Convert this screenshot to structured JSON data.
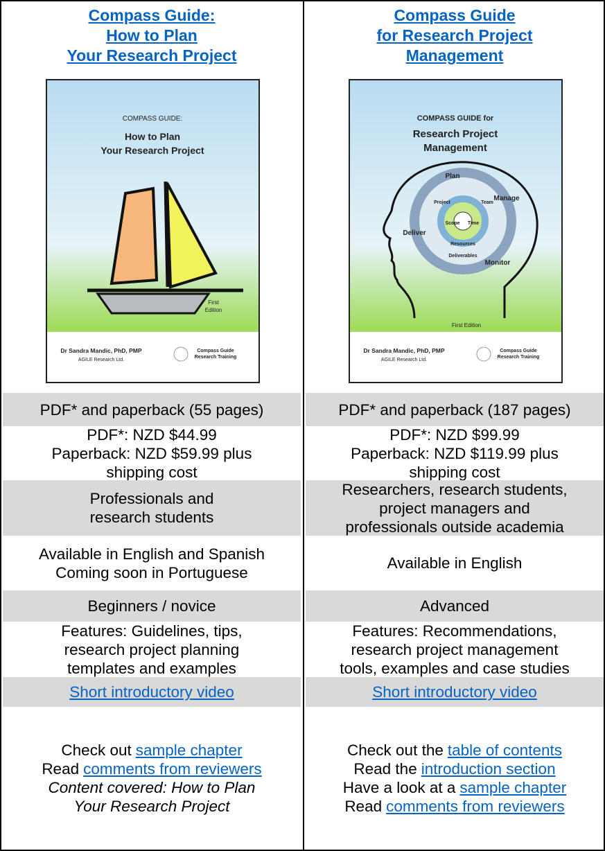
{
  "columns": [
    {
      "title": [
        "Compass Guide:",
        "How to Plan",
        "Your Research Project"
      ],
      "cover": {
        "kicker": "COMPASS GUIDE:",
        "title": [
          "How to Plan",
          "Your Research Project"
        ],
        "edition": [
          "First",
          "Edition"
        ],
        "author": "Dr Sandra Mandic, PhD, PMP",
        "publisher": "AGILE Research Ltd.",
        "brand": [
          "Compass Guide",
          "Research Training"
        ]
      },
      "format": "PDF* and paperback (55 pages)",
      "price": [
        "PDF*: NZD $44.99",
        "Paperback: NZD $59.99 plus",
        "shipping cost"
      ],
      "audience": [
        "Professionals and",
        "research students"
      ],
      "language": [
        "Available in English and Spanish",
        "Coming soon in Portuguese"
      ],
      "level": "Beginners / novice",
      "features": [
        "Features: Guidelines, tips,",
        "research project planning",
        "templates and examples"
      ],
      "video": "Short introductory video",
      "links": [
        [
          "Check out",
          "sample chapter"
        ],
        [
          "Read",
          "comments from reviewers"
        ]
      ],
      "note": [
        "Content covered: How to Plan",
        "Your Research Project"
      ]
    },
    {
      "title": [
        "Compass Guide",
        "for Research Project",
        "Management"
      ],
      "cover": {
        "kicker": "COMPASS GUIDE for",
        "title": [
          "Research Project",
          "Management"
        ],
        "edition": [
          "First Edition"
        ],
        "author": "Dr Sandra Mandic, PhD, PMP",
        "publisher": "AGILE Research Ltd.",
        "brand": [
          "Compass Guide",
          "Research Training"
        ],
        "cycle": [
          "Plan",
          "Manage",
          "Monitor",
          "Deliver",
          "Project",
          "Team",
          "Scope",
          "Time",
          "Resources",
          "Deliverables"
        ]
      },
      "format": "PDF* and paperback (187 pages)",
      "price": [
        "PDF*: NZD $99.99",
        "Paperback: NZD $119.99 plus",
        "shipping cost"
      ],
      "audience": [
        "Researchers, research students,",
        "project managers and",
        "professionals outside academia"
      ],
      "language": [
        "Available in English"
      ],
      "level": "Advanced",
      "features": [
        "Features: Recommendations,",
        "research project management",
        "tools, examples and case studies"
      ],
      "video": "Short introductory video",
      "links": [
        [
          "Check out the",
          "table of contents"
        ],
        [
          "Read the",
          "introduction section"
        ],
        [
          "Have a look at a",
          "sample chapter"
        ],
        [
          "Read",
          "comments from reviewers"
        ]
      ]
    }
  ]
}
